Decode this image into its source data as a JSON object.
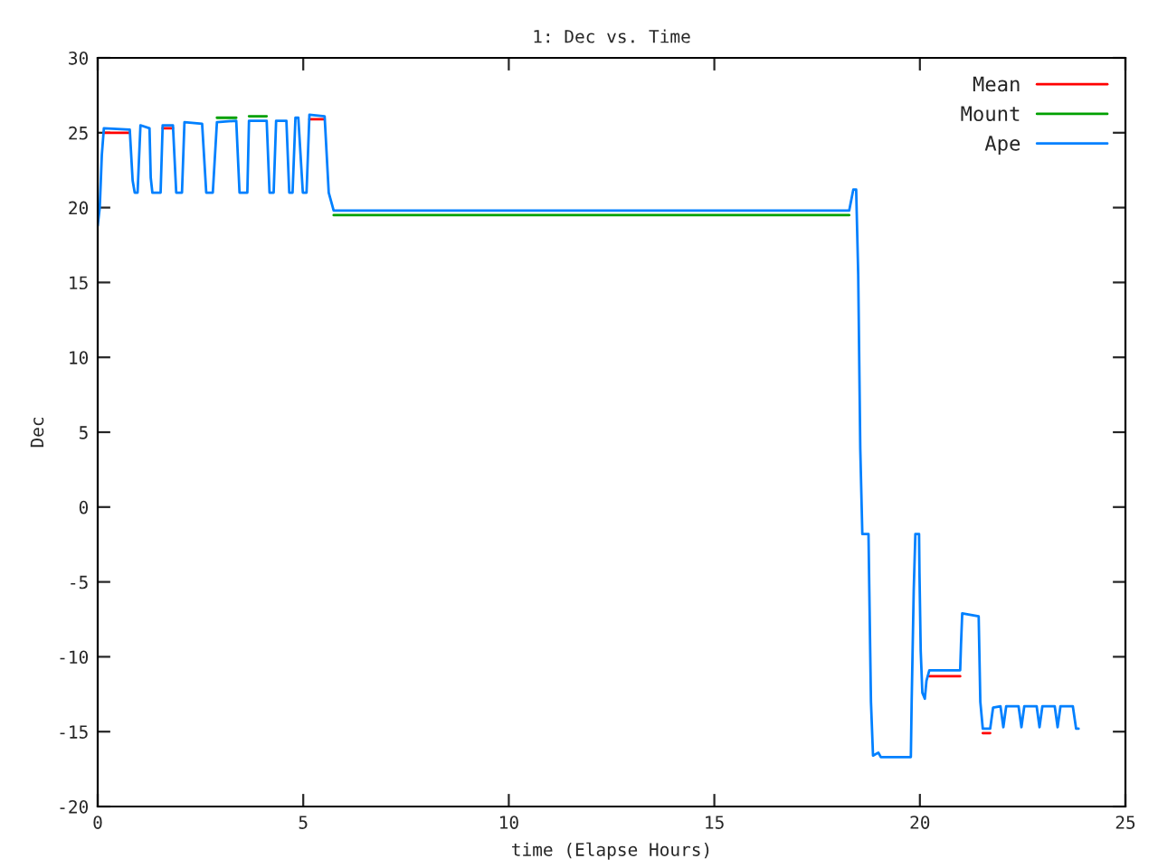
{
  "chart_data": {
    "type": "line",
    "title": "1: Dec vs. Time",
    "xlabel": "time (Elapse Hours)",
    "ylabel": "Dec",
    "x": [
      0,
      0.05,
      0.1,
      0.15,
      0.78,
      0.85,
      0.9,
      0.97,
      1.04,
      1.26,
      1.29,
      1.33,
      1.53,
      1.58,
      1.83,
      1.91,
      2.05,
      2.11,
      2.54,
      2.64,
      2.8,
      2.9,
      3.37,
      3.45,
      3.64,
      3.68,
      4.11,
      4.18,
      4.28,
      4.34,
      4.59,
      4.66,
      4.74,
      4.81,
      4.88,
      4.99,
      5.08,
      5.15,
      5.52,
      5.62,
      5.69,
      5.74,
      18.28,
      18.38,
      18.45,
      18.5,
      18.55,
      18.6,
      18.75,
      18.77,
      18.81,
      18.86,
      18.99,
      19.05,
      19.78,
      19.8,
      19.85,
      19.89,
      19.98,
      19.99,
      20.02,
      20.06,
      20.12,
      20.16,
      20.23,
      20.98,
      21.0,
      21.03,
      21.43,
      21.47,
      21.53,
      21.71,
      21.78,
      21.96,
      22.03,
      22.1,
      22.4,
      22.47,
      22.54,
      22.84,
      22.91,
      22.98,
      23.28,
      23.35,
      23.42,
      23.72,
      23.8,
      23.86
    ],
    "series": [
      {
        "name": "Mean",
        "color": "#ff0000",
        "values": [
          null,
          null,
          null,
          25.0,
          25.0,
          null,
          null,
          null,
          null,
          null,
          null,
          null,
          null,
          25.3,
          25.3,
          null,
          null,
          null,
          null,
          null,
          null,
          null,
          null,
          null,
          null,
          null,
          null,
          null,
          null,
          null,
          null,
          null,
          null,
          null,
          null,
          null,
          null,
          25.9,
          25.9,
          null,
          null,
          null,
          null,
          null,
          null,
          null,
          null,
          null,
          null,
          null,
          null,
          null,
          null,
          null,
          null,
          null,
          null,
          null,
          null,
          null,
          null,
          null,
          null,
          null,
          -11.3,
          -11.3,
          null,
          null,
          null,
          null,
          -15.1,
          -15.1,
          null,
          null,
          null,
          null,
          null,
          null,
          null,
          null,
          null,
          null,
          null,
          null,
          null,
          null,
          null,
          null
        ]
      },
      {
        "name": "Mount",
        "color": "#00a000",
        "values": [
          null,
          null,
          null,
          null,
          null,
          null,
          null,
          null,
          null,
          null,
          null,
          null,
          null,
          null,
          null,
          null,
          null,
          null,
          null,
          null,
          null,
          26.0,
          26.0,
          null,
          null,
          26.1,
          26.1,
          null,
          null,
          null,
          null,
          null,
          null,
          null,
          null,
          null,
          null,
          null,
          null,
          null,
          null,
          19.5,
          19.5,
          null,
          null,
          null,
          null,
          null,
          null,
          null,
          null,
          null,
          null,
          null,
          null,
          null,
          null,
          null,
          null,
          null,
          null,
          null,
          null,
          null,
          null,
          null,
          null,
          null,
          null,
          null,
          null,
          null,
          null,
          null,
          null,
          null,
          null,
          null,
          null,
          null,
          null,
          null,
          null,
          null,
          null,
          null,
          null,
          null
        ]
      },
      {
        "name": "Ape",
        "color": "#0080ff",
        "values": [
          18.8,
          20,
          23.5,
          25.3,
          25.2,
          21.8,
          21,
          21,
          25.5,
          25.3,
          22,
          21,
          21,
          25.5,
          25.5,
          21,
          21,
          25.7,
          25.6,
          21,
          21,
          25.7,
          25.8,
          21,
          21,
          25.8,
          25.8,
          21,
          21,
          25.8,
          25.8,
          21,
          21,
          26,
          26,
          21,
          21,
          26.2,
          26.1,
          21,
          20.3,
          19.8,
          19.8,
          21.2,
          21.2,
          15.5,
          3.9,
          -1.8,
          -1.8,
          -5.6,
          -13,
          -16.6,
          -16.4,
          -16.7,
          -16.7,
          -13,
          -5.6,
          -1.8,
          -1.8,
          -4.4,
          -9.6,
          -12.4,
          -12.8,
          -11.6,
          -10.9,
          -10.9,
          -9.2,
          -7.1,
          -7.3,
          -13,
          -14.8,
          -14.8,
          -13.4,
          -13.3,
          -14.7,
          -13.3,
          -13.3,
          -14.7,
          -13.3,
          -13.3,
          -14.7,
          -13.3,
          -13.3,
          -14.7,
          -13.3,
          -13.3,
          -14.8,
          -14.8
        ]
      }
    ],
    "xlim": [
      0,
      25
    ],
    "xticks": [
      0,
      5,
      10,
      15,
      20,
      25
    ],
    "ylim": [
      -20,
      30
    ],
    "yticks": [
      -20,
      -15,
      -10,
      -5,
      0,
      5,
      10,
      15,
      20,
      25,
      30
    ],
    "grid": false,
    "legend": "top right",
    "marker": "none",
    "line_style": "solid"
  }
}
